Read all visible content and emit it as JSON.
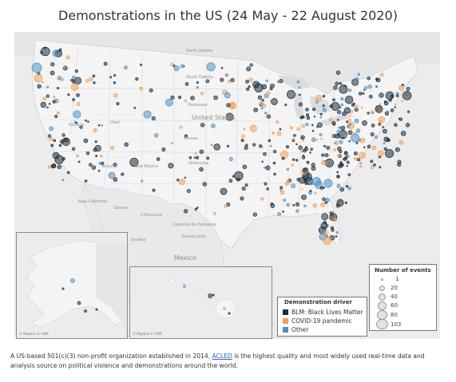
{
  "title": "Demonstrations in the US (24 May - 22 August 2020)",
  "map": {
    "labels": [
      {
        "text": "North Dakota"
      },
      {
        "text": "South Dakota"
      },
      {
        "text": "Nebraska"
      },
      {
        "text": "United States",
        "big": true
      },
      {
        "text": "Nevada"
      },
      {
        "text": "Utah"
      },
      {
        "text": "Kansas"
      },
      {
        "text": "Oklahoma"
      },
      {
        "text": "Arizona"
      },
      {
        "text": "New Mexico"
      },
      {
        "text": "Baja California"
      },
      {
        "text": "Sonora"
      },
      {
        "text": "Chihuahua"
      },
      {
        "text": "Coahuila de Zaragoza"
      },
      {
        "text": "Nuevo León"
      },
      {
        "text": "Sinaloa"
      },
      {
        "text": "Mexico",
        "big": true
      }
    ],
    "attribution": "© Mapbox © OSM"
  },
  "legend_events": {
    "title": "Number of events",
    "items": [
      {
        "value": 1
      },
      {
        "value": 20
      },
      {
        "value": 40
      },
      {
        "value": 60
      },
      {
        "value": 80
      },
      {
        "value": 103
      }
    ]
  },
  "legend_driver": {
    "title": "Demonstration driver",
    "items": [
      {
        "label": "BLM: Black Lives Matter",
        "color": "#1e2d3b"
      },
      {
        "label": "COVID-19 pandemic",
        "color": "#f2a15a"
      },
      {
        "label": "Other",
        "color": "#4f91c4"
      }
    ]
  },
  "caption": {
    "before": "A US-based 501(c)(3) non-profit organization established in 2014, ",
    "link": "ACLED",
    "after": " is the highest quality and most widely used real-time data and analysis source on political violence and demonstrations around the world."
  }
}
